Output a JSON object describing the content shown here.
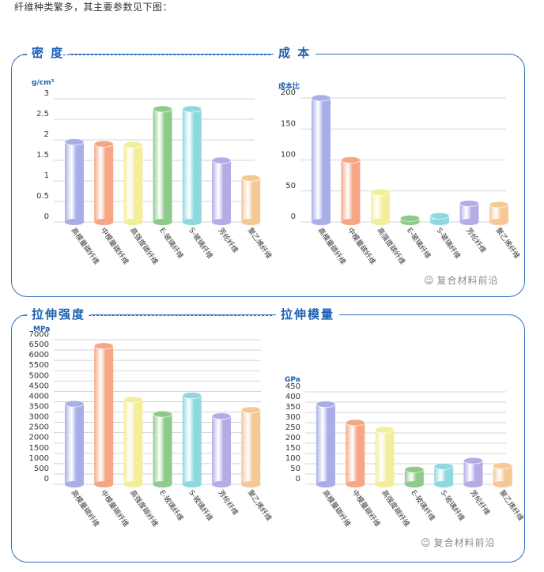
{
  "intro_text": "纤维种类繁多，其主要参数见下图：",
  "watermark": "复合材料前沿",
  "watermark_icon": "wechat-icon",
  "colors": {
    "frame": "#2a6fc0",
    "title": "#1b5fb3",
    "bars": [
      "#a9aee6",
      "#f6a685",
      "#f3ee9a",
      "#8ecb8a",
      "#8fd8e0",
      "#b7abe6",
      "#f5c896"
    ]
  },
  "chart_data": [
    {
      "id": "density",
      "type": "bar",
      "title": "密 度",
      "ylabel": "g/cm³",
      "ylim": [
        0,
        3
      ],
      "yticks": [
        "3",
        "2.5",
        "2",
        "1.5",
        "1",
        "0.5",
        "0"
      ],
      "categories": [
        "高模量碳纤维",
        "中模量碳纤维",
        "高强度碳纤维",
        "E-玻璃纤维",
        "S-玻璃纤维",
        "芳纶纤维",
        "聚乙烯纤维"
      ],
      "values": [
        1.95,
        1.9,
        1.88,
        2.75,
        2.75,
        1.5,
        1.07
      ]
    },
    {
      "id": "cost",
      "type": "bar",
      "title": "成 本",
      "ylabel": "成本比",
      "ylim": [
        0,
        200
      ],
      "yticks": [
        "200",
        "150",
        "100",
        "50",
        "0"
      ],
      "categories": [
        "高模量碳纤维",
        "中模量碳纤维",
        "高强度碳纤维",
        "E-玻璃纤维",
        "S-玻璃纤维",
        "芳纶纤维",
        "聚乙烯纤维"
      ],
      "values": [
        200,
        100,
        48,
        6,
        10,
        30,
        28
      ]
    },
    {
      "id": "tensile-strength",
      "type": "bar",
      "title": "拉伸强度",
      "ylabel": "MPa",
      "ylim": [
        0,
        7000
      ],
      "yticks": [
        "7000",
        "6500",
        "6000",
        "5500",
        "5000",
        "4500",
        "4000",
        "3500",
        "3000",
        "2500",
        "2000",
        "1500",
        "1000",
        "500",
        "0"
      ],
      "categories": [
        "高模量碳纤维",
        "中模量碳纤维",
        "高强度碳纤维",
        "E-玻璃纤维",
        "S-玻璃纤维",
        "芳纶纤维",
        "聚乙烯纤维"
      ],
      "values": [
        3900,
        6700,
        4100,
        3400,
        4300,
        3300,
        3600
      ]
    },
    {
      "id": "tensile-modulus",
      "type": "bar",
      "title": "拉伸模量",
      "ylabel": "GPa",
      "ylim": [
        0,
        450
      ],
      "yticks": [
        "450",
        "400",
        "350",
        "300",
        "250",
        "200",
        "150",
        "100",
        "50",
        "0"
      ],
      "categories": [
        "高模量碳纤维",
        "中模量碳纤维",
        "高强度碳纤维",
        "E-玻璃纤维",
        "S-玻璃纤维",
        "芳纶纤维",
        "聚乙烯纤维"
      ],
      "values": [
        390,
        300,
        265,
        72,
        87,
        115,
        90
      ]
    }
  ]
}
